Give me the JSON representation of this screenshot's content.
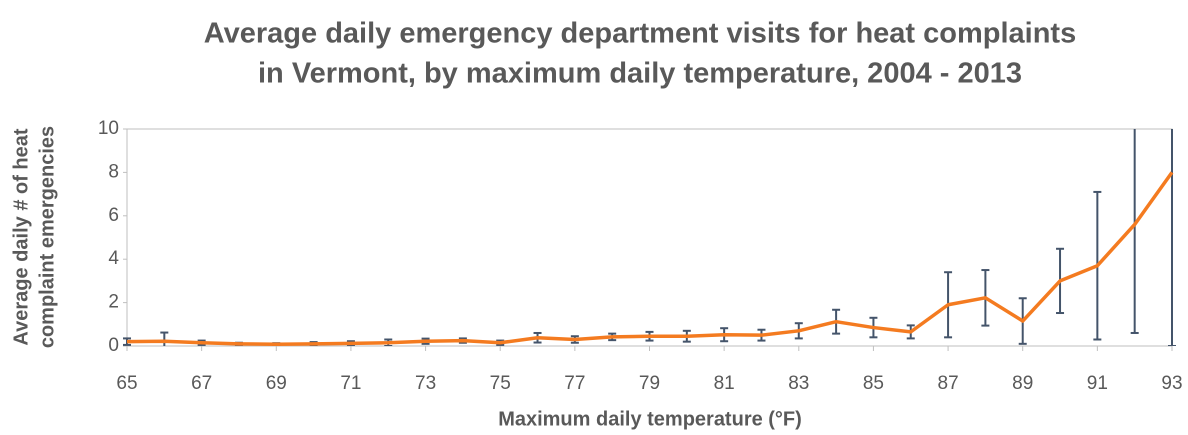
{
  "chart_data": {
    "type": "line",
    "title": [
      "Average daily emergency department visits for heat complaints",
      "in Vermont, by maximum daily temperature, 2004 - 2013"
    ],
    "x_label": "Maximum daily temperature (°F)",
    "y_label": [
      "Average daily # of heat",
      "complaint emergencies"
    ],
    "x": [
      65,
      66,
      67,
      68,
      69,
      70,
      71,
      72,
      73,
      74,
      75,
      76,
      77,
      78,
      79,
      80,
      81,
      82,
      83,
      84,
      85,
      86,
      87,
      88,
      89,
      90,
      91,
      92,
      93
    ],
    "series": [
      {
        "color": "#f47b20",
        "error_color": "#44546a",
        "values": [
          0.2,
          0.22,
          0.15,
          0.1,
          0.08,
          0.1,
          0.12,
          0.15,
          0.22,
          0.25,
          0.15,
          0.38,
          0.3,
          0.42,
          0.45,
          0.45,
          0.52,
          0.5,
          0.7,
          1.12,
          0.85,
          0.65,
          1.9,
          2.22,
          1.15,
          3.0,
          3.7,
          5.6,
          8.0
        ],
        "errors": [
          0.15,
          0.4,
          0.1,
          0.05,
          0.05,
          0.08,
          0.1,
          0.15,
          0.12,
          0.1,
          0.1,
          0.22,
          0.15,
          0.15,
          0.2,
          0.25,
          0.3,
          0.25,
          0.35,
          0.55,
          0.45,
          0.3,
          1.5,
          1.28,
          1.05,
          1.48,
          3.4,
          5.0,
          8.0
        ]
      }
    ],
    "xlim": [
      65,
      93
    ],
    "xticks": [
      65,
      67,
      69,
      71,
      73,
      75,
      77,
      79,
      81,
      83,
      85,
      87,
      89,
      91,
      93
    ],
    "ylim": [
      0,
      10
    ],
    "yticks": [
      0,
      2,
      4,
      6,
      8,
      10
    ],
    "grid": false
  }
}
